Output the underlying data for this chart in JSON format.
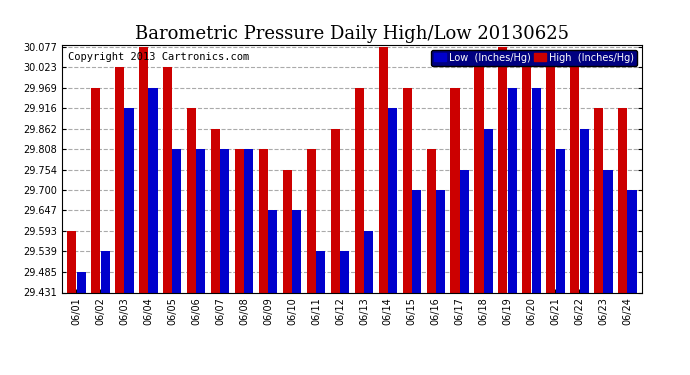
{
  "title": "Barometric Pressure Daily High/Low 20130625",
  "copyright": "Copyright 2013 Cartronics.com",
  "dates": [
    "06/01",
    "06/02",
    "06/03",
    "06/04",
    "06/05",
    "06/06",
    "06/07",
    "06/08",
    "06/09",
    "06/10",
    "06/11",
    "06/12",
    "06/13",
    "06/14",
    "06/15",
    "06/16",
    "06/17",
    "06/18",
    "06/19",
    "06/20",
    "06/21",
    "06/22",
    "06/23",
    "06/24"
  ],
  "low_values": [
    29.485,
    29.539,
    29.916,
    29.969,
    29.808,
    29.808,
    29.808,
    29.808,
    29.647,
    29.647,
    29.539,
    29.539,
    29.593,
    29.916,
    29.7,
    29.7,
    29.754,
    29.862,
    29.969,
    29.969,
    29.808,
    29.862,
    29.754,
    29.7
  ],
  "high_values": [
    29.593,
    29.969,
    30.023,
    30.077,
    30.023,
    29.916,
    29.862,
    29.808,
    29.808,
    29.754,
    29.808,
    29.862,
    29.969,
    30.077,
    29.969,
    29.808,
    29.969,
    30.023,
    30.077,
    30.023,
    30.023,
    30.023,
    29.916,
    29.916
  ],
  "ylim_min": 29.431,
  "ylim_max": 30.077,
  "yticks": [
    29.431,
    29.485,
    29.539,
    29.593,
    29.647,
    29.7,
    29.754,
    29.808,
    29.862,
    29.916,
    29.969,
    30.023,
    30.077
  ],
  "bar_color_low": "#0000cc",
  "bar_color_high": "#cc0000",
  "bg_color": "#ffffff",
  "plot_bg_color": "#ffffff",
  "grid_color": "#aaaaaa",
  "title_fontsize": 13,
  "copyright_fontsize": 7.5,
  "tick_fontsize": 7,
  "legend_low_label": "Low  (Inches/Hg)",
  "legend_high_label": "High  (Inches/Hg)"
}
